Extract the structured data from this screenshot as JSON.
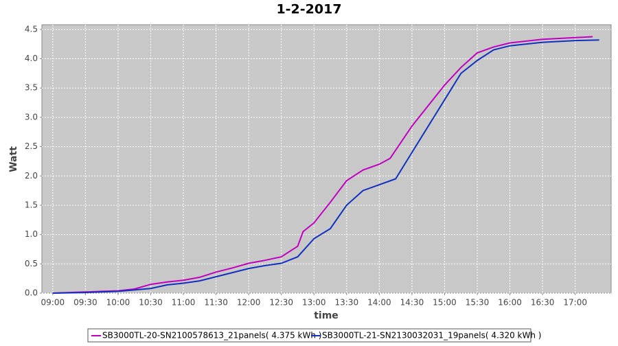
{
  "chart_data": {
    "type": "line",
    "title": "1-2-2017",
    "x_label": "time",
    "y_label": "Watt",
    "xlim": [
      "08:50",
      "17:33"
    ],
    "xticks": [
      "09:00",
      "09:30",
      "10:00",
      "10:30",
      "11:00",
      "11:30",
      "12:00",
      "12:30",
      "13:00",
      "13:30",
      "14:00",
      "14:30",
      "15:00",
      "15:30",
      "16:00",
      "16:30",
      "17:00"
    ],
    "ylim": [
      0,
      4.58
    ],
    "yticks": [
      {
        "value": 0,
        "label": "0.0"
      },
      0.5,
      {
        "value": 1,
        "label": "1.0"
      },
      1.5,
      {
        "value": 2,
        "label": "2.0"
      },
      2.5,
      {
        "value": 3,
        "label": "3.0"
      },
      3.5,
      {
        "value": 4,
        "label": "4.0"
      },
      4.5
    ],
    "grid": true,
    "legend": "bottom",
    "series": [
      {
        "name": "SB3000TL-20-SN2100578613_21panels( 4.375 kWh )",
        "color": "#c000c0",
        "x": [
          "09:00",
          "09:15",
          "09:30",
          "09:45",
          "10:00",
          "10:15",
          "10:30",
          "10:45",
          "11:00",
          "11:15",
          "11:30",
          "11:45",
          "12:00",
          "12:15",
          "12:30",
          "12:45",
          "12:50",
          "13:00",
          "13:15",
          "13:30",
          "13:45",
          "14:00",
          "14:10",
          "14:30",
          "14:45",
          "15:00",
          "15:15",
          "15:30",
          "15:45",
          "16:00",
          "16:30",
          "17:00",
          "17:16"
        ],
        "values": [
          0,
          0.01,
          0.02,
          0.03,
          0.04,
          0.07,
          0.15,
          0.19,
          0.22,
          0.27,
          0.36,
          0.43,
          0.51,
          0.56,
          0.62,
          0.8,
          1.05,
          1.2,
          1.55,
          1.92,
          2.1,
          2.2,
          2.3,
          2.85,
          3.2,
          3.55,
          3.85,
          4.1,
          4.2,
          4.27,
          4.33,
          4.36,
          4.375
        ]
      },
      {
        "name": "SB3000TL-21-SN2130032031_19panels( 4.320 kWh )",
        "color": "#1030c0",
        "x": [
          "09:00",
          "09:30",
          "10:00",
          "10:30",
          "10:45",
          "11:00",
          "11:15",
          "11:30",
          "11:45",
          "12:00",
          "12:15",
          "12:30",
          "12:45",
          "13:00",
          "13:15",
          "13:30",
          "13:45",
          "14:00",
          "14:15",
          "14:30",
          "14:45",
          "15:00",
          "15:15",
          "15:30",
          "15:45",
          "16:00",
          "16:30",
          "17:00",
          "17:22"
        ],
        "values": [
          0,
          0.01,
          0.03,
          0.08,
          0.14,
          0.17,
          0.21,
          0.28,
          0.35,
          0.42,
          0.47,
          0.51,
          0.62,
          0.93,
          1.1,
          1.5,
          1.75,
          1.85,
          1.95,
          2.4,
          2.85,
          3.3,
          3.75,
          3.97,
          4.15,
          4.22,
          4.28,
          4.31,
          4.32
        ]
      }
    ]
  }
}
